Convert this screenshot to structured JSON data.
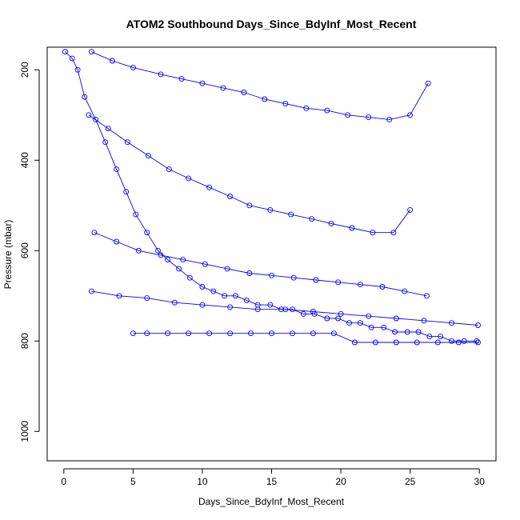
{
  "chart_data": {
    "type": "scatter",
    "title": "ATOM2 Southbound Days_Since_BdyInf_Most_Recent",
    "xlabel": "Days_Since_BdyInf_Most_Recent",
    "ylabel": "Pressure (mbar)",
    "xlim": [
      -1.2,
      31.2
    ],
    "ylim": [
      1065,
      150
    ],
    "y_reversed": true,
    "x_ticks": [
      0,
      5,
      10,
      15,
      20,
      25,
      30
    ],
    "y_ticks": [
      200,
      400,
      600,
      800,
      1000
    ],
    "grid": false,
    "series_color": "#0000ff",
    "series": [
      {
        "style": "points-and-lines",
        "marker": "open-circle",
        "x": [
          0.1,
          0.6,
          1.0,
          1.5,
          2.3,
          3.0,
          3.8,
          4.5,
          5.2,
          6.0,
          6.8,
          7.5,
          8.3,
          9.1,
          10.0,
          10.8,
          11.6,
          12.4,
          13.2,
          14.0,
          14.9,
          15.7,
          16.5,
          17.3,
          18.1,
          19.0,
          19.8,
          20.6,
          21.4,
          22.2,
          23.1,
          23.9,
          24.8,
          25.6,
          26.4,
          27.2,
          28.0,
          28.9,
          29.8
        ],
        "y": [
          160,
          175,
          200,
          260,
          310,
          360,
          420,
          470,
          520,
          560,
          600,
          620,
          640,
          660,
          680,
          690,
          700,
          700,
          710,
          720,
          720,
          730,
          730,
          740,
          740,
          750,
          750,
          760,
          760,
          770,
          770,
          780,
          780,
          780,
          790,
          790,
          800,
          800,
          800
        ]
      },
      {
        "style": "points-and-lines",
        "marker": "open-circle",
        "x": [
          2.0,
          3.5,
          5.0,
          7.0,
          8.5,
          10.0,
          11.5,
          13.0,
          14.5,
          16.0,
          17.5,
          19.0,
          20.5,
          22.0,
          23.5,
          25.0,
          26.3
        ],
        "y": [
          160,
          180,
          195,
          210,
          220,
          230,
          240,
          250,
          265,
          275,
          285,
          290,
          300,
          305,
          310,
          300,
          230
        ]
      },
      {
        "style": "points-and-lines",
        "marker": "open-circle",
        "x": [
          1.8,
          3.2,
          4.6,
          6.1,
          7.6,
          9.0,
          10.5,
          12.0,
          13.4,
          14.9,
          16.4,
          17.9,
          19.3,
          20.8,
          22.3,
          23.8,
          25.0
        ],
        "y": [
          300,
          330,
          360,
          390,
          420,
          440,
          460,
          480,
          500,
          510,
          520,
          530,
          540,
          550,
          560,
          560,
          510
        ]
      },
      {
        "style": "points-and-lines",
        "marker": "open-circle",
        "x": [
          2.2,
          3.8,
          5.4,
          7.0,
          8.6,
          10.2,
          11.8,
          13.4,
          15.0,
          16.6,
          18.2,
          19.8,
          21.4,
          23.0,
          24.6,
          26.2
        ],
        "y": [
          560,
          580,
          600,
          610,
          620,
          630,
          640,
          650,
          655,
          660,
          665,
          670,
          675,
          680,
          690,
          700
        ]
      },
      {
        "style": "points-and-lines",
        "marker": "open-circle",
        "x": [
          2.0,
          4.0,
          6.0,
          8.0,
          10.0,
          12.0,
          14.0,
          16.0,
          18.0,
          20.0,
          22.0,
          24.0,
          26.0,
          28.0,
          29.9
        ],
        "y": [
          690,
          700,
          705,
          715,
          720,
          725,
          730,
          730,
          735,
          740,
          745,
          750,
          755,
          760,
          765
        ]
      },
      {
        "style": "points-and-lines",
        "marker": "open-circle",
        "x": [
          5.0,
          6.0,
          7.5,
          9.0,
          10.5,
          12.0,
          13.5,
          15.0,
          16.5,
          18.0,
          19.5,
          21.0,
          22.5,
          24.0,
          25.5,
          27.0,
          28.5,
          29.9
        ],
        "y": [
          783,
          783,
          783,
          783,
          783,
          783,
          783,
          783,
          783,
          783,
          783,
          803,
          803,
          803,
          803,
          803,
          803,
          803
        ]
      }
    ]
  }
}
